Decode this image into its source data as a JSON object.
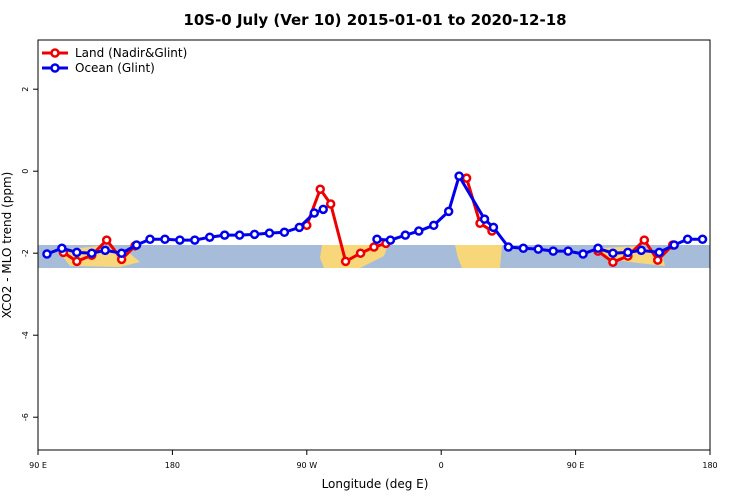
{
  "chart_data": {
    "type": "line",
    "title": "10S-0 July (Ver 10)   2015-01-01 to 2020-12-18",
    "x_label": "Longitude (deg E)",
    "y_label": "XCO2 - MLO trend (ppm)",
    "xlim": [
      90,
      540
    ],
    "ylim": [
      -6.8,
      3.2
    ],
    "xticks": [
      {
        "value": 90,
        "label": "90 E"
      },
      180,
      {
        "value": 270,
        "label": "90 W"
      },
      {
        "value": 360,
        "label": "0"
      },
      {
        "value": 450,
        "label": "90 E"
      },
      {
        "value": 540,
        "label": "180"
      }
    ],
    "yticks": [
      -6,
      -4,
      -2,
      0,
      2
    ],
    "legend": "top-left",
    "series": [
      {
        "name": "Land (Nadir&Glint)",
        "color": "#ee0000",
        "x": [
          107,
          116,
          126,
          136,
          146,
          155,
          null,
          270,
          279,
          286,
          296,
          306,
          315,
          323,
          null,
          377,
          386,
          394,
          null,
          465,
          475,
          485,
          496,
          505,
          515
        ],
        "values": [
          -1.98,
          -2.2,
          -2.05,
          -1.68,
          -2.15,
          -1.82,
          null,
          -1.32,
          -0.44,
          -0.8,
          -2.2,
          -2.0,
          -1.85,
          -1.76,
          null,
          -0.17,
          -1.27,
          -1.46,
          null,
          -1.95,
          -2.22,
          -2.07,
          -1.68,
          -2.17,
          -1.8
        ]
      },
      {
        "name": "Ocean (Glint)",
        "color": "#0000ee",
        "x": [
          96,
          106,
          116,
          126,
          135,
          146,
          156,
          165,
          175,
          185,
          195,
          205,
          215,
          225,
          235,
          245,
          255,
          265,
          275,
          281,
          null,
          317,
          326,
          336,
          345,
          355,
          365,
          372,
          389,
          395,
          405,
          415,
          425,
          435,
          445,
          455,
          465,
          475,
          485,
          494,
          506,
          516,
          525,
          535
        ],
        "values": [
          -2.02,
          -1.88,
          -1.98,
          -2.0,
          -1.93,
          -2.0,
          -1.8,
          -1.66,
          -1.66,
          -1.68,
          -1.68,
          -1.61,
          -1.56,
          -1.56,
          -1.54,
          -1.51,
          -1.49,
          -1.37,
          -1.02,
          -0.93,
          null,
          -1.66,
          -1.68,
          -1.56,
          -1.46,
          -1.32,
          -0.98,
          -0.12,
          -1.17,
          -1.37,
          -1.85,
          -1.88,
          -1.9,
          -1.95,
          -1.95,
          -2.02,
          -1.88,
          -2.0,
          -1.98,
          -1.93,
          -1.98,
          -1.8,
          -1.66,
          -1.66
        ]
      }
    ]
  }
}
